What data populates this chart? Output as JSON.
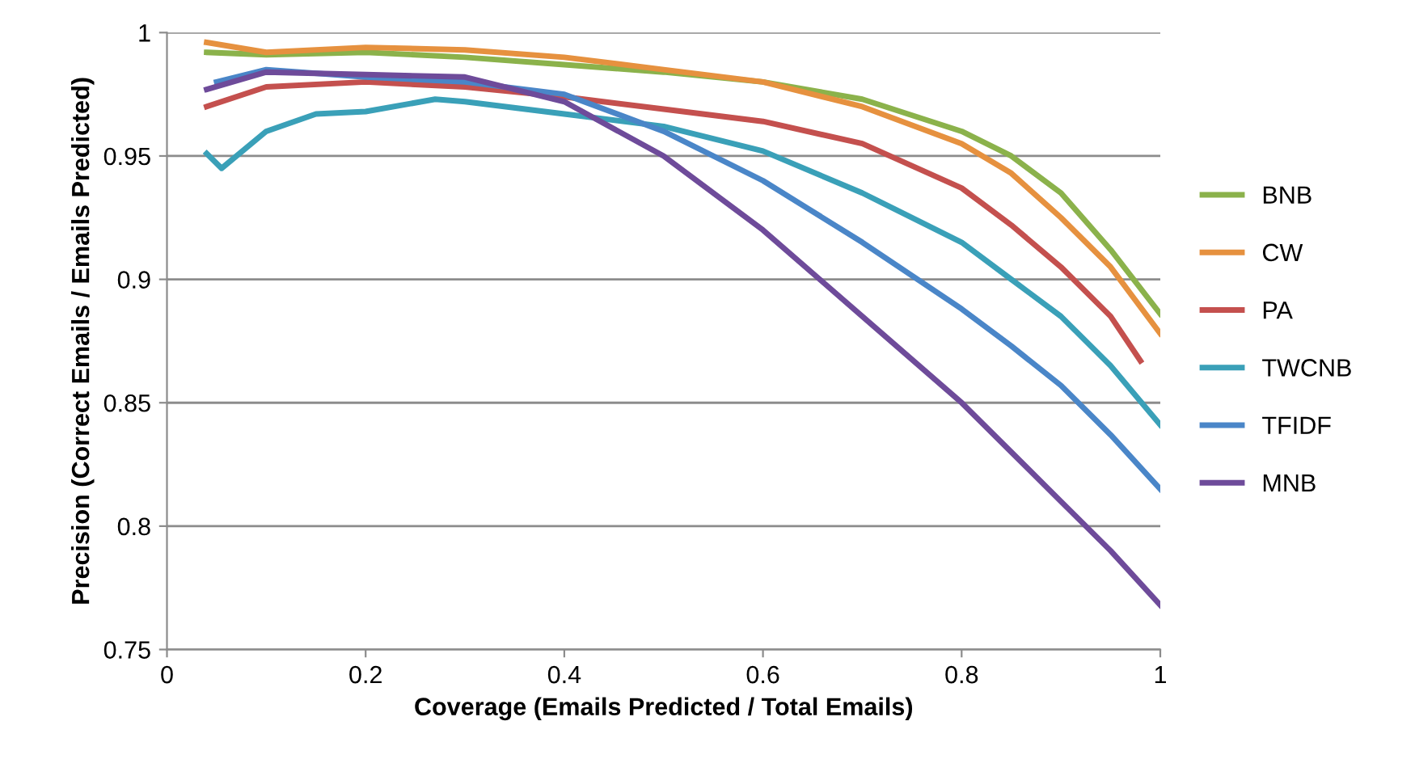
{
  "chart_data": {
    "type": "line",
    "xlabel": "Coverage (Emails Predicted / Total Emails)",
    "ylabel": "Precision (Correct Emails / Emails Predicted)",
    "xlim": [
      0,
      1
    ],
    "ylim": [
      0.75,
      1
    ],
    "xticks": [
      0,
      0.2,
      0.4,
      0.6,
      0.8,
      1
    ],
    "yticks": [
      0.75,
      0.8,
      0.85,
      0.9,
      0.95,
      1
    ],
    "grid": "y",
    "legend": "right",
    "marker": "none",
    "line_style": "solid",
    "series": [
      {
        "name": "BNB",
        "color": "#8bb24b",
        "x": [
          0.04,
          0.1,
          0.2,
          0.3,
          0.4,
          0.5,
          0.6,
          0.7,
          0.8,
          0.85,
          0.9,
          0.95,
          1.0
        ],
        "values": [
          0.992,
          0.991,
          0.992,
          0.99,
          0.987,
          0.984,
          0.98,
          0.973,
          0.96,
          0.95,
          0.935,
          0.912,
          0.886
        ]
      },
      {
        "name": "CW",
        "color": "#e6913f",
        "x": [
          0.04,
          0.1,
          0.2,
          0.3,
          0.4,
          0.5,
          0.6,
          0.7,
          0.8,
          0.85,
          0.9,
          0.95,
          1.0
        ],
        "values": [
          0.996,
          0.992,
          0.994,
          0.993,
          0.99,
          0.985,
          0.98,
          0.97,
          0.955,
          0.943,
          0.925,
          0.905,
          0.878
        ]
      },
      {
        "name": "PA",
        "color": "#c4504e",
        "x": [
          0.04,
          0.1,
          0.2,
          0.3,
          0.4,
          0.5,
          0.6,
          0.7,
          0.8,
          0.85,
          0.9,
          0.95,
          0.98
        ],
        "values": [
          0.97,
          0.978,
          0.98,
          0.978,
          0.974,
          0.969,
          0.964,
          0.955,
          0.937,
          0.922,
          0.905,
          0.885,
          0.867
        ]
      },
      {
        "name": "TWCNB",
        "color": "#3aa0b8",
        "x": [
          0.04,
          0.055,
          0.1,
          0.15,
          0.2,
          0.27,
          0.3,
          0.4,
          0.5,
          0.6,
          0.7,
          0.8,
          0.85,
          0.9,
          0.95,
          1.0
        ],
        "values": [
          0.951,
          0.945,
          0.96,
          0.967,
          0.968,
          0.973,
          0.972,
          0.967,
          0.962,
          0.952,
          0.935,
          0.915,
          0.9,
          0.885,
          0.865,
          0.841
        ]
      },
      {
        "name": "TFIDF",
        "color": "#4a86c8",
        "x": [
          0.05,
          0.1,
          0.2,
          0.3,
          0.4,
          0.5,
          0.6,
          0.7,
          0.8,
          0.85,
          0.9,
          0.95,
          1.0
        ],
        "values": [
          0.98,
          0.985,
          0.982,
          0.98,
          0.975,
          0.96,
          0.94,
          0.915,
          0.888,
          0.873,
          0.857,
          0.837,
          0.815
        ]
      },
      {
        "name": "MNB",
        "color": "#6e4b9a",
        "x": [
          0.04,
          0.1,
          0.2,
          0.3,
          0.4,
          0.5,
          0.6,
          0.7,
          0.8,
          0.85,
          0.9,
          0.95,
          1.0
        ],
        "values": [
          0.977,
          0.984,
          0.983,
          0.982,
          0.972,
          0.95,
          0.92,
          0.885,
          0.85,
          0.83,
          0.81,
          0.79,
          0.768
        ]
      }
    ]
  }
}
